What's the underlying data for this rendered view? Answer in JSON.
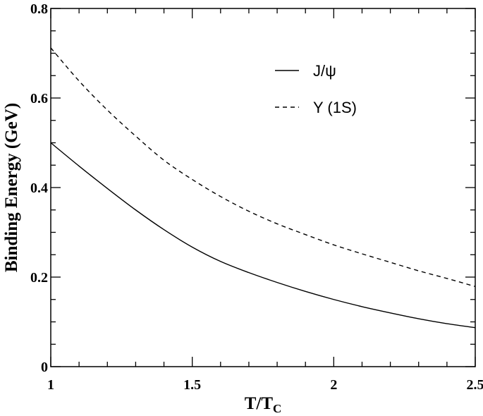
{
  "chart_data": {
    "type": "line",
    "title": "",
    "xlabel_main": "T/T",
    "xlabel_sub": "C",
    "ylabel": "Binding Energy (GeV)",
    "xlim": [
      1,
      2.5
    ],
    "ylim": [
      0,
      0.8
    ],
    "x_ticks": [
      1,
      1.5,
      2,
      2.5
    ],
    "x_tick_labels": [
      "1",
      "1.5",
      "2",
      "2.5"
    ],
    "y_ticks": [
      0,
      0.2,
      0.4,
      0.6,
      0.8
    ],
    "y_tick_labels": [
      "0",
      "0.2",
      "0.4",
      "0.6",
      "0.8"
    ],
    "grid": false,
    "legend_position": "top-right",
    "series": [
      {
        "name": "J/ψ",
        "style": "solid",
        "x": [
          1.0,
          1.1,
          1.2,
          1.3,
          1.4,
          1.5,
          1.6,
          1.7,
          1.8,
          1.9,
          2.0,
          2.1,
          2.2,
          2.3,
          2.4,
          2.5
        ],
        "y": [
          0.5,
          0.448,
          0.398,
          0.35,
          0.306,
          0.267,
          0.235,
          0.21,
          0.188,
          0.168,
          0.15,
          0.134,
          0.12,
          0.107,
          0.096,
          0.087
        ]
      },
      {
        "name": "Υ (1S)",
        "style": "dashed",
        "x": [
          1.0,
          1.1,
          1.2,
          1.3,
          1.4,
          1.5,
          1.6,
          1.7,
          1.8,
          1.9,
          2.0,
          2.1,
          2.2,
          2.3,
          2.4,
          2.5
        ],
        "y": [
          0.712,
          0.638,
          0.573,
          0.515,
          0.461,
          0.418,
          0.38,
          0.347,
          0.319,
          0.295,
          0.272,
          0.252,
          0.233,
          0.214,
          0.197,
          0.179
        ]
      }
    ]
  }
}
